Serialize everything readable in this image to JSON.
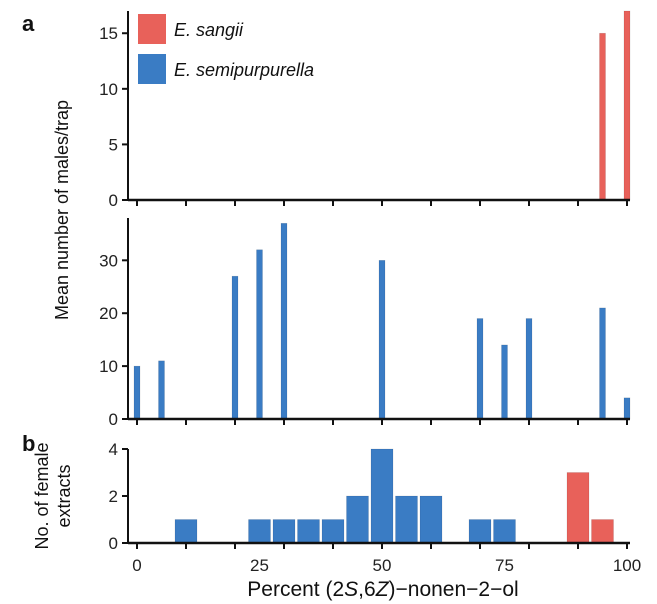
{
  "colors": {
    "red": "#e8615a",
    "blue": "#3a7cc4",
    "axis": "#111111"
  },
  "labels": {
    "panel_a": "a",
    "panel_b": "b",
    "ylabel_a": "Mean number of males/trap",
    "ylabel_b_line1": "No. of female",
    "ylabel_b_line2": "extracts",
    "xlabel_prefix": "Percent (2",
    "xlabel_s": "S",
    "xlabel_mid": ",6",
    "xlabel_z": "Z",
    "xlabel_suffix": ")−nonen−2−ol"
  },
  "legend": [
    {
      "name": "E. sangii",
      "color": "#e8615a"
    },
    {
      "name": "E. semipurpurella",
      "color": "#3a7cc4"
    }
  ],
  "chart_data": [
    {
      "type": "bar",
      "panel": "a-top",
      "xlim": [
        0,
        100
      ],
      "ylim": [
        0,
        17
      ],
      "yticks": [
        0,
        5,
        10,
        15
      ],
      "series": [
        {
          "name": "E. sangii",
          "x": [
            95,
            100
          ],
          "values": [
            15,
            17
          ]
        }
      ]
    },
    {
      "type": "bar",
      "panel": "a-bottom",
      "xlim": [
        0,
        100
      ],
      "ylim": [
        0,
        38
      ],
      "yticks": [
        0,
        10,
        20,
        30
      ],
      "series": [
        {
          "name": "E. semipurpurella",
          "x": [
            0,
            5,
            20,
            25,
            30,
            50,
            70,
            75,
            80,
            95,
            100
          ],
          "values": [
            10,
            11,
            27,
            32,
            37,
            30,
            19,
            14,
            19,
            21,
            4
          ]
        }
      ]
    },
    {
      "type": "bar",
      "panel": "b",
      "xlim": [
        0,
        100
      ],
      "ylim": [
        0,
        4
      ],
      "yticks": [
        0,
        2,
        4
      ],
      "xticks": [
        0,
        25,
        50,
        75,
        100
      ],
      "series": [
        {
          "name": "E. semipurpurella",
          "x": [
            10,
            25,
            30,
            35,
            40,
            45,
            50,
            55,
            60,
            70,
            75
          ],
          "values": [
            1,
            1,
            1,
            1,
            1,
            2,
            4,
            2,
            2,
            1,
            1
          ]
        },
        {
          "name": "E. sangii",
          "x": [
            90,
            95
          ],
          "values": [
            3,
            1
          ]
        }
      ]
    }
  ]
}
